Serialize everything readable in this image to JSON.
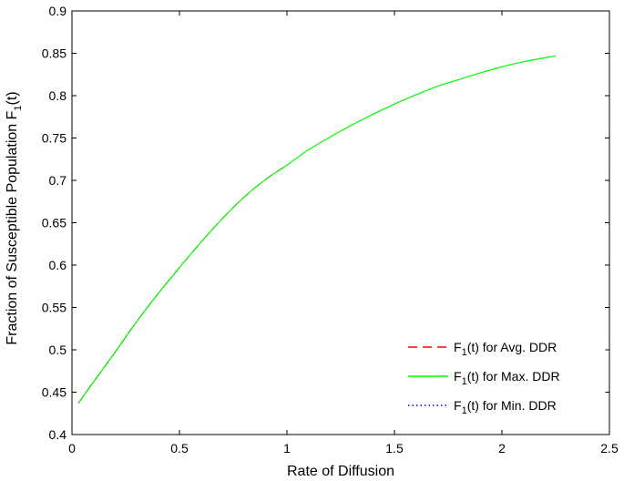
{
  "chart_data": {
    "type": "line",
    "title": "",
    "xlabel": "Rate of Diffusion",
    "ylabel_main": "Fraction of Susceptible Population F",
    "ylabel_sub": "1",
    "ylabel_tail": "(t)",
    "xlim": [
      0,
      2.5
    ],
    "ylim": [
      0.4,
      0.9
    ],
    "x_ticks": [
      0,
      0.5,
      1,
      1.5,
      2,
      2.5
    ],
    "x_tick_labels": [
      "0",
      "0.5",
      "1",
      "1.5",
      "2",
      "2.5"
    ],
    "y_ticks": [
      0.4,
      0.45,
      0.5,
      0.55,
      0.6,
      0.65,
      0.7,
      0.75,
      0.8,
      0.85,
      0.9
    ],
    "y_tick_labels": [
      "0.4",
      "0.45",
      "0.5",
      "0.55",
      "0.6",
      "0.65",
      "0.7",
      "0.75",
      "0.8",
      "0.85",
      "0.9"
    ],
    "grid": false,
    "legend_position": "bottom-right",
    "series": [
      {
        "name_prefix": "F",
        "name_sub": "1",
        "name_suffix": "(t) for Avg. DDR",
        "color": "#ff0000",
        "style": "dashed",
        "x": [
          0.03,
          0.1,
          0.2,
          0.3,
          0.4,
          0.5,
          0.6,
          0.7,
          0.8,
          0.9,
          1.0
        ],
        "y": [
          0.437,
          0.462,
          0.497,
          0.533,
          0.566,
          0.597,
          0.627,
          0.655,
          0.68,
          0.701,
          0.718
        ]
      },
      {
        "name_prefix": "F",
        "name_sub": "1",
        "name_suffix": "(t) for Max. DDR",
        "color": "#00ff00",
        "style": "solid",
        "x": [
          0.03,
          0.1,
          0.2,
          0.3,
          0.4,
          0.5,
          0.6,
          0.7,
          0.8,
          0.9,
          1.0,
          1.1,
          1.2,
          1.3,
          1.4,
          1.5,
          1.6,
          1.7,
          1.8,
          1.9,
          2.0,
          2.1,
          2.25
        ],
        "y": [
          0.437,
          0.462,
          0.497,
          0.533,
          0.566,
          0.597,
          0.627,
          0.655,
          0.68,
          0.701,
          0.718,
          0.736,
          0.751,
          0.765,
          0.778,
          0.79,
          0.801,
          0.811,
          0.819,
          0.827,
          0.834,
          0.84,
          0.847
        ]
      },
      {
        "name_prefix": "F",
        "name_sub": "1",
        "name_suffix": "(t) for Min. DDR",
        "color": "#0000ff",
        "style": "dotted",
        "x": [
          0.03,
          0.1,
          0.2,
          0.3,
          0.4,
          0.5
        ],
        "y": [
          0.437,
          0.462,
          0.497,
          0.533,
          0.566,
          0.597
        ]
      }
    ]
  }
}
